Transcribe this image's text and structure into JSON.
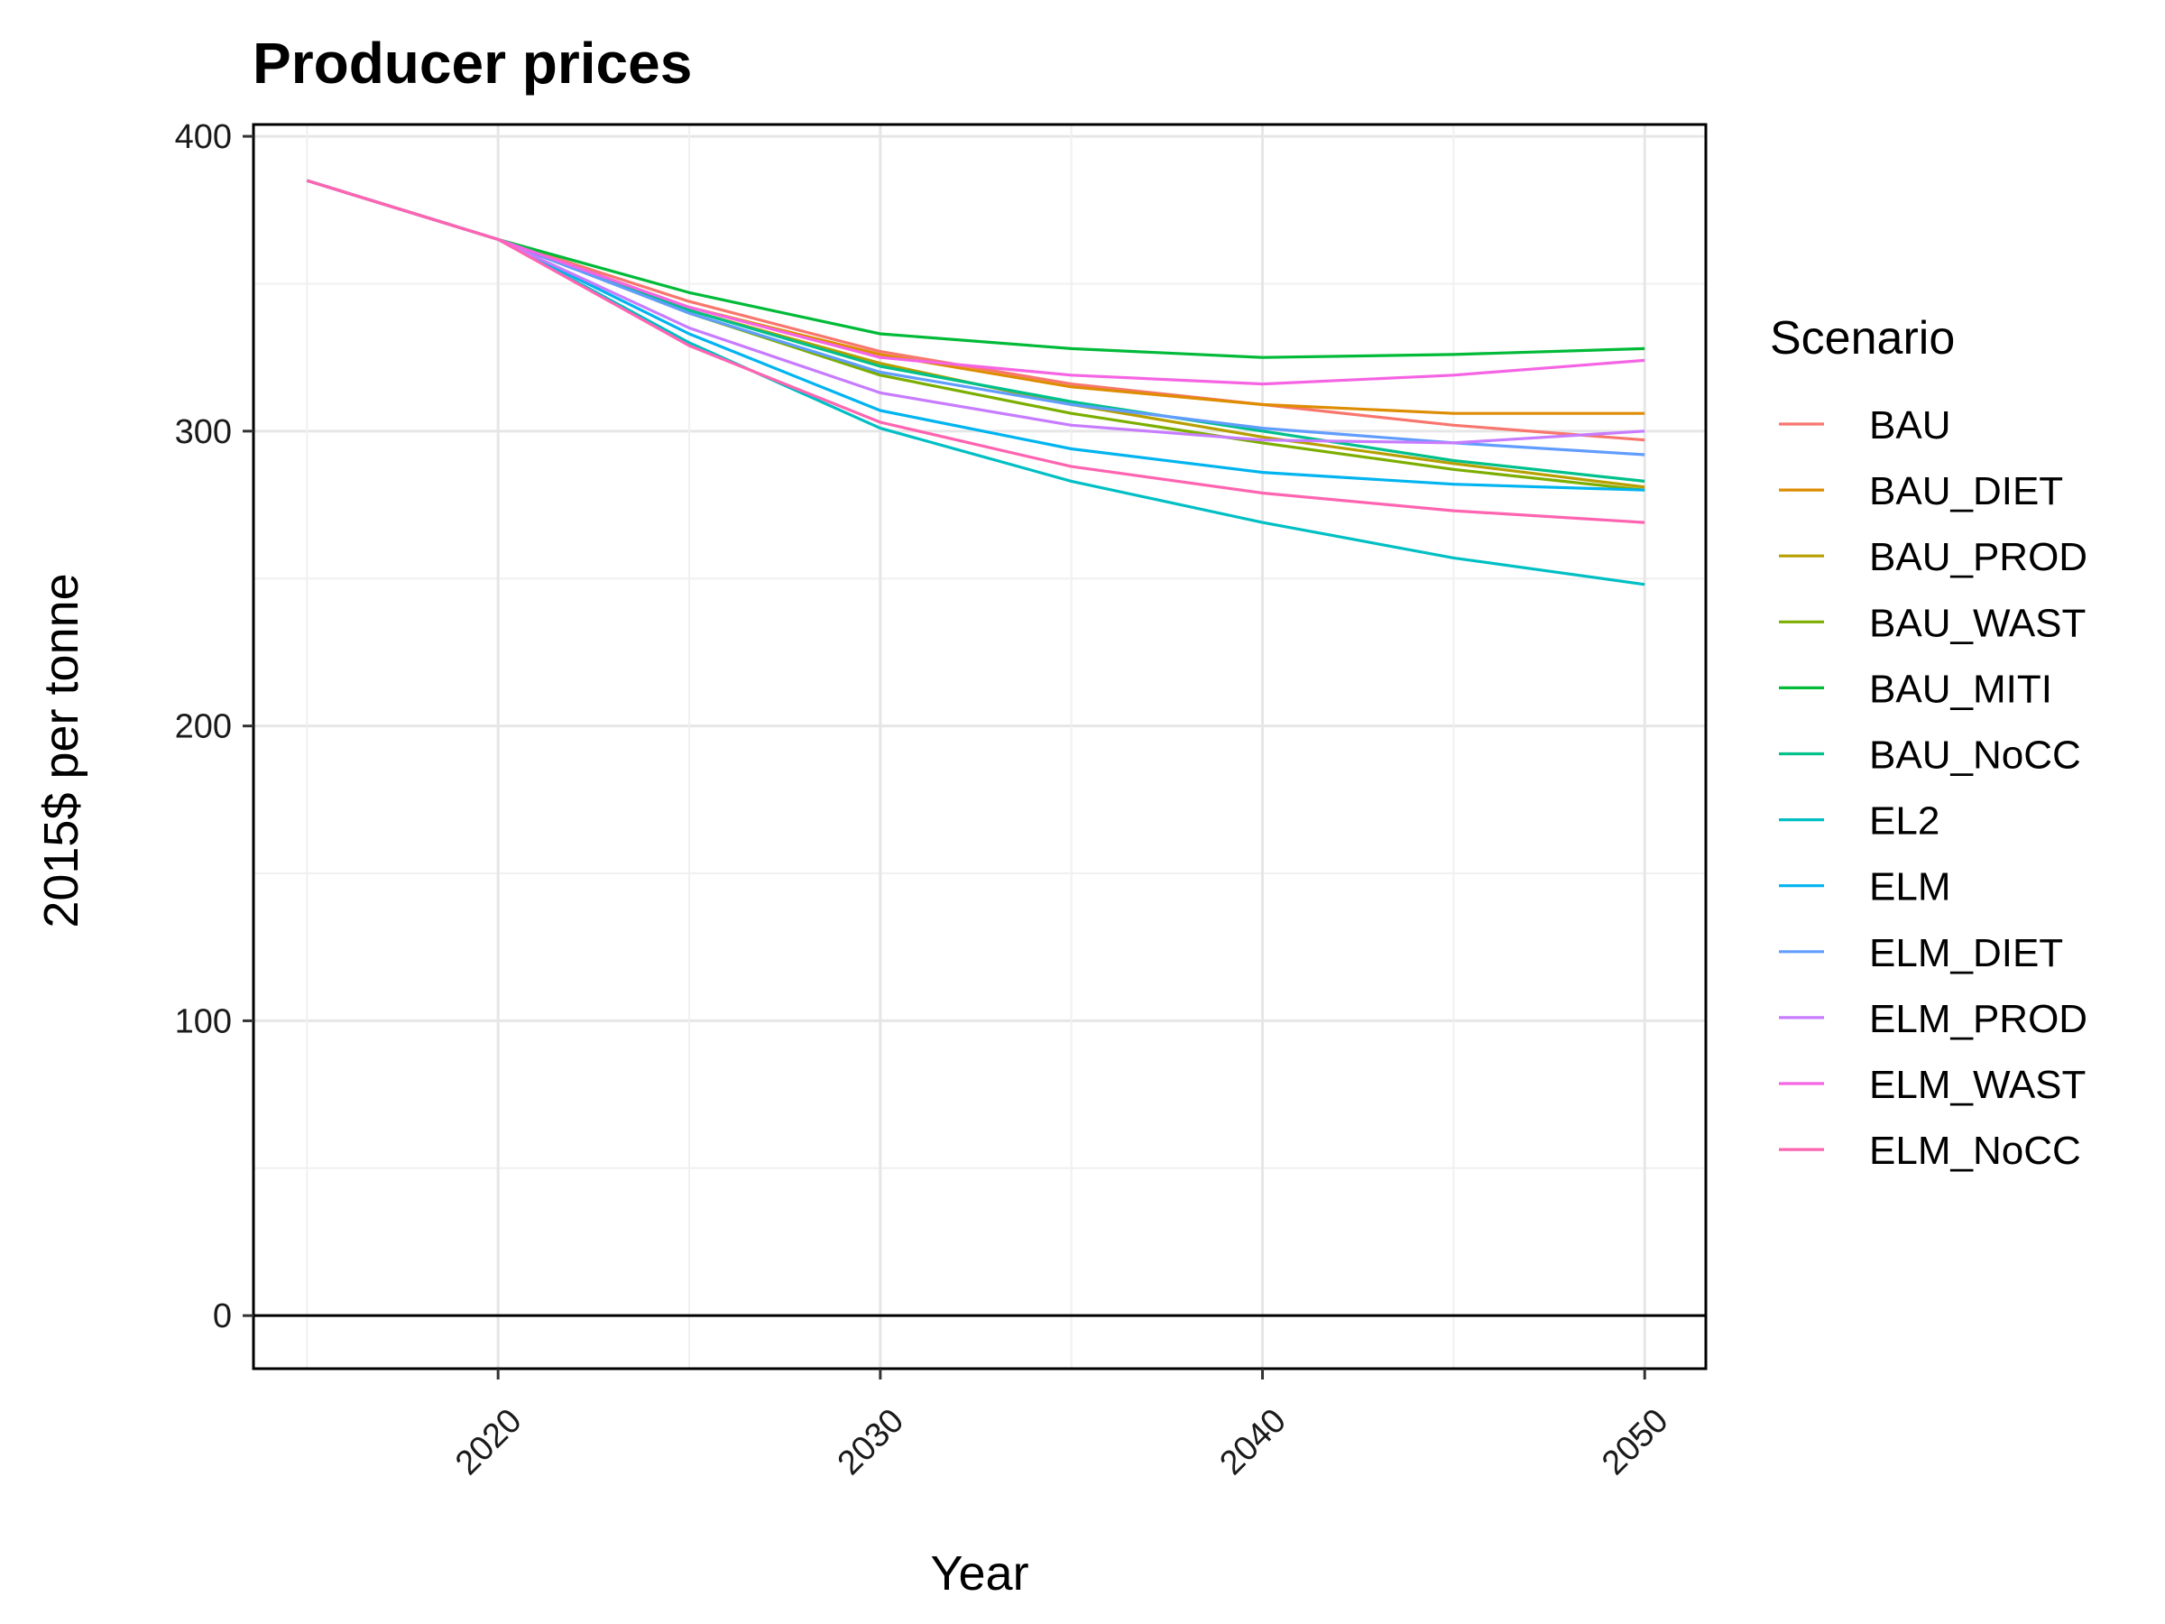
{
  "chart_data": {
    "type": "line",
    "title": "Producer prices",
    "xlabel": "Year",
    "ylabel": "2015$ per tonne",
    "xlim": [
      2013.6,
      2051.6
    ],
    "ylim": [
      -18,
      404
    ],
    "x_ticks": [
      2020,
      2030,
      2040,
      2050
    ],
    "y_ticks": [
      0,
      100,
      200,
      300,
      400
    ],
    "grid": true,
    "hline": 0,
    "legend": {
      "title": "Scenario",
      "placement": "right"
    },
    "x": [
      2015,
      2020,
      2025,
      2030,
      2035,
      2040,
      2045,
      2050
    ],
    "series": [
      {
        "name": "BAU",
        "color": "#F8766D",
        "values": [
          385,
          365,
          344,
          327,
          316,
          309,
          302,
          297
        ]
      },
      {
        "name": "BAU_DIET",
        "color": "#DE8C00",
        "values": [
          385,
          365,
          342,
          326,
          315,
          309,
          306,
          306
        ]
      },
      {
        "name": "BAU_PROD",
        "color": "#B79F00",
        "values": [
          385,
          365,
          341,
          323,
          309,
          298,
          289,
          281
        ]
      },
      {
        "name": "BAU_WAST",
        "color": "#7CAE00",
        "values": [
          385,
          365,
          340,
          319,
          306,
          296,
          287,
          280
        ]
      },
      {
        "name": "BAU_MITI",
        "color": "#00BA38",
        "values": [
          385,
          365,
          347,
          333,
          328,
          325,
          326,
          328
        ]
      },
      {
        "name": "BAU_NoCC",
        "color": "#00C08B",
        "values": [
          385,
          365,
          341,
          322,
          310,
          300,
          290,
          283
        ]
      },
      {
        "name": "EL2",
        "color": "#00BFC4",
        "values": [
          385,
          365,
          330,
          301,
          283,
          269,
          257,
          248
        ]
      },
      {
        "name": "ELM",
        "color": "#00B4F0",
        "values": [
          385,
          365,
          333,
          307,
          294,
          286,
          282,
          280
        ]
      },
      {
        "name": "ELM_DIET",
        "color": "#619CFF",
        "values": [
          385,
          365,
          340,
          320,
          309,
          301,
          296,
          292
        ]
      },
      {
        "name": "ELM_PROD",
        "color": "#C77CFF",
        "values": [
          385,
          365,
          335,
          313,
          302,
          297,
          296,
          300
        ]
      },
      {
        "name": "ELM_WAST",
        "color": "#F564E3",
        "values": [
          385,
          365,
          342,
          325,
          319,
          316,
          319,
          324
        ]
      },
      {
        "name": "ELM_NoCC",
        "color": "#FF64B0",
        "values": [
          385,
          365,
          329,
          303,
          288,
          279,
          273,
          269
        ]
      }
    ]
  }
}
